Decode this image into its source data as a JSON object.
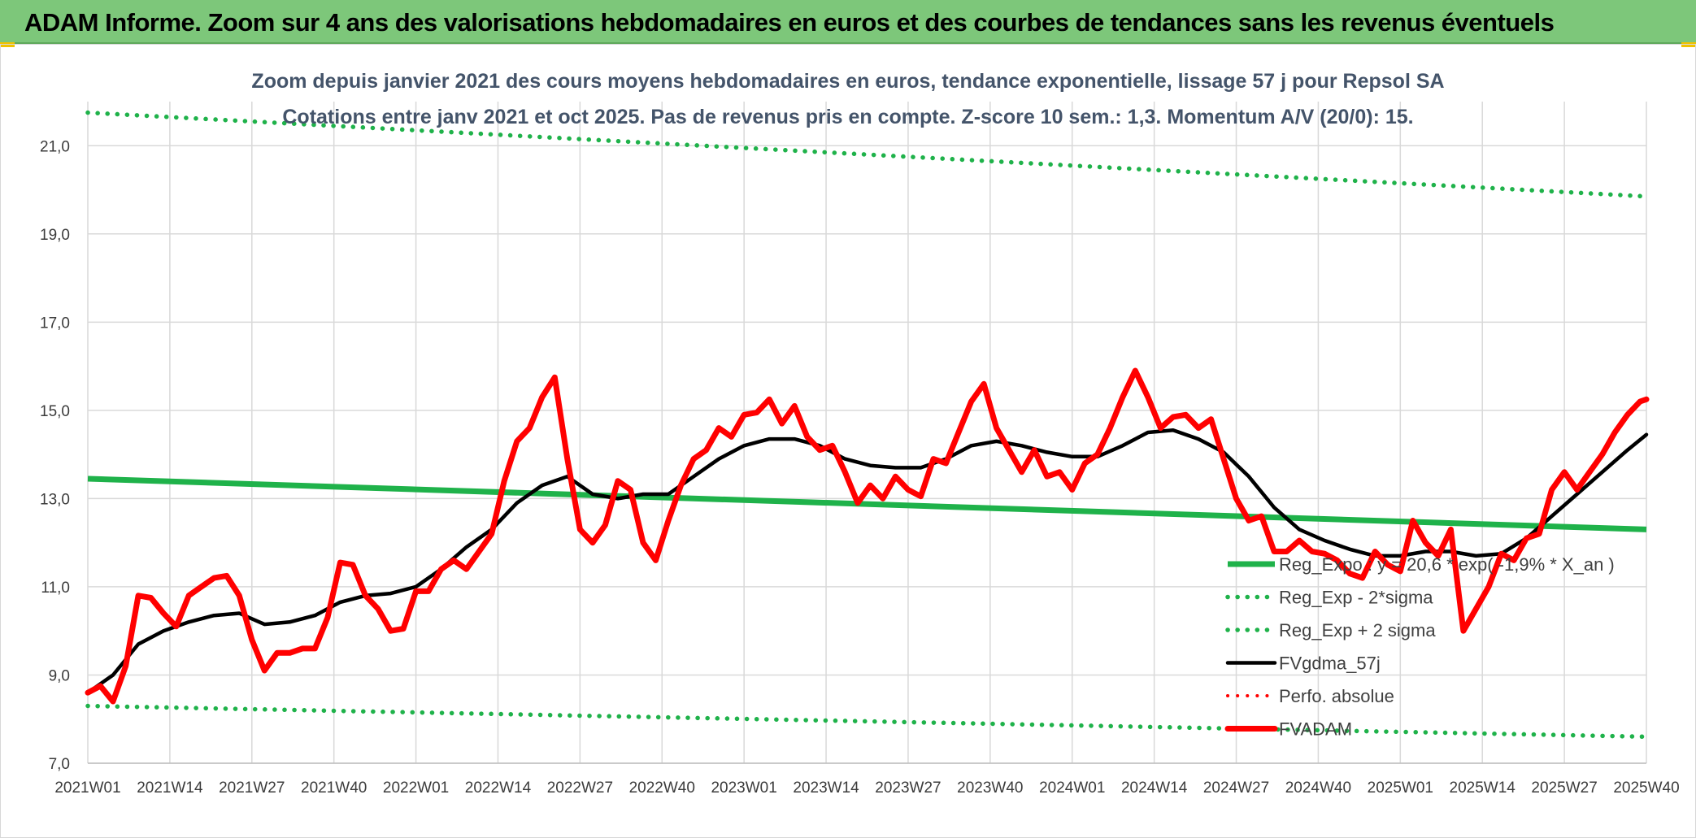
{
  "header": {
    "title": "ADAM Informe. Zoom sur 4 ans des valorisations hebdomadaires en euros et des courbes de tendances sans les revenus éventuels",
    "bar_color": "#7dc77a"
  },
  "chart_data": {
    "type": "line",
    "title_line1": "Zoom depuis janvier 2021 des cours moyens hebdomadaires en euros, tendance exponentielle, lissage 57 j pour Repsol SA",
    "title_line2": "Cotations entre janv 2021 et oct 2025. Pas de revenus pris en compte. Z-score 10 sem.: 1,3. Momentum A/V (20/0): 15.",
    "xlabel": "",
    "ylabel": "",
    "ylim": [
      7.0,
      22.0
    ],
    "y_ticks": [
      "7,0",
      "9,0",
      "11,0",
      "13,0",
      "15,0",
      "17,0",
      "19,0",
      "21,0"
    ],
    "y_tick_values": [
      7,
      9,
      11,
      13,
      15,
      17,
      19,
      21
    ],
    "x_range": [
      0,
      247
    ],
    "x_ticks": [
      "2021W01",
      "2021W14",
      "2021W27",
      "2021W40",
      "2022W01",
      "2022W14",
      "2022W27",
      "2022W40",
      "2023W01",
      "2023W14",
      "2023W27",
      "2023W40",
      "2024W01",
      "2024W14",
      "2024W27",
      "2024W40",
      "2025W01",
      "2025W14",
      "2025W27",
      "2025W40"
    ],
    "x_tick_positions": [
      0,
      13,
      26,
      39,
      52,
      65,
      78,
      91,
      104,
      117,
      130,
      143,
      156,
      169,
      182,
      195,
      208,
      221,
      234,
      247
    ],
    "legend_position": "right",
    "series": [
      {
        "name": "Reg_Expo : y = 20,6 * exp( -1,9% *  X_an )",
        "style": "solid",
        "color": "#1fb24a",
        "x": [
          0,
          247
        ],
        "values": [
          13.45,
          12.3
        ]
      },
      {
        "name": "Reg_Exp - 2*sigma",
        "style": "dotted",
        "color": "#1fb24a",
        "x": [
          0,
          247
        ],
        "values": [
          8.3,
          7.6
        ]
      },
      {
        "name": "Reg_Exp + 2 sigma",
        "style": "dotted",
        "color": "#1fb24a",
        "x": [
          0,
          247
        ],
        "values": [
          21.75,
          19.85
        ]
      },
      {
        "name": "FVgdma_57j",
        "style": "solid",
        "color": "#000000",
        "x": [
          0,
          4,
          8,
          12,
          16,
          20,
          24,
          28,
          32,
          36,
          40,
          44,
          48,
          52,
          56,
          60,
          64,
          68,
          72,
          76,
          80,
          84,
          88,
          92,
          96,
          100,
          104,
          108,
          112,
          116,
          120,
          124,
          128,
          132,
          136,
          140,
          144,
          148,
          152,
          156,
          160,
          164,
          168,
          172,
          176,
          180,
          184,
          188,
          192,
          196,
          200,
          204,
          208,
          212,
          216,
          220,
          224,
          228,
          232,
          236,
          240,
          244,
          247
        ],
        "values": [
          8.6,
          9.0,
          9.7,
          10.0,
          10.2,
          10.35,
          10.4,
          10.15,
          10.2,
          10.35,
          10.65,
          10.8,
          10.85,
          11.0,
          11.4,
          11.9,
          12.3,
          12.9,
          13.3,
          13.5,
          13.1,
          13.0,
          13.1,
          13.1,
          13.5,
          13.9,
          14.2,
          14.35,
          14.35,
          14.2,
          13.9,
          13.75,
          13.7,
          13.7,
          13.9,
          14.2,
          14.3,
          14.2,
          14.05,
          13.95,
          13.95,
          14.2,
          14.5,
          14.55,
          14.35,
          14.05,
          13.5,
          12.8,
          12.3,
          12.05,
          11.85,
          11.7,
          11.7,
          11.8,
          11.8,
          11.7,
          11.75,
          12.1,
          12.6,
          13.1,
          13.6,
          14.1,
          14.45
        ]
      },
      {
        "name": "Perfo. absolue",
        "style": "dotted",
        "color": "#ff0000",
        "x": [],
        "values": []
      },
      {
        "name": "FVADAM",
        "style": "solid",
        "color": "#ff0000",
        "x": [
          0,
          2,
          4,
          6,
          8,
          10,
          12,
          14,
          16,
          18,
          20,
          22,
          24,
          26,
          28,
          30,
          32,
          34,
          36,
          38,
          40,
          42,
          44,
          46,
          48,
          50,
          52,
          54,
          56,
          58,
          60,
          62,
          64,
          66,
          68,
          70,
          72,
          74,
          76,
          78,
          80,
          82,
          84,
          86,
          88,
          90,
          92,
          94,
          96,
          98,
          100,
          102,
          104,
          106,
          108,
          110,
          112,
          114,
          116,
          118,
          120,
          122,
          124,
          126,
          128,
          130,
          132,
          134,
          136,
          138,
          140,
          142,
          144,
          146,
          148,
          150,
          152,
          154,
          156,
          158,
          160,
          162,
          164,
          166,
          168,
          170,
          172,
          174,
          176,
          178,
          180,
          182,
          184,
          186,
          188,
          190,
          192,
          194,
          196,
          198,
          200,
          202,
          204,
          206,
          208,
          210,
          212,
          214,
          216,
          218,
          220,
          222,
          224,
          226,
          228,
          230,
          232,
          234,
          236,
          238,
          240,
          242,
          244,
          246,
          247
        ],
        "values": [
          8.6,
          8.75,
          8.4,
          9.2,
          10.8,
          10.75,
          10.4,
          10.1,
          10.8,
          11.0,
          11.2,
          11.25,
          10.8,
          9.8,
          9.1,
          9.5,
          9.5,
          9.6,
          9.6,
          10.3,
          11.55,
          11.5,
          10.8,
          10.5,
          10.0,
          10.05,
          10.9,
          10.9,
          11.4,
          11.6,
          11.4,
          11.8,
          12.2,
          13.4,
          14.3,
          14.6,
          15.3,
          15.75,
          13.9,
          12.3,
          12.0,
          12.4,
          13.4,
          13.2,
          12.0,
          11.6,
          12.5,
          13.3,
          13.9,
          14.1,
          14.6,
          14.4,
          14.9,
          14.95,
          15.25,
          14.7,
          15.1,
          14.4,
          14.1,
          14.2,
          13.6,
          12.9,
          13.3,
          13.0,
          13.5,
          13.2,
          13.05,
          13.9,
          13.8,
          14.5,
          15.2,
          15.6,
          14.6,
          14.1,
          13.6,
          14.1,
          13.5,
          13.6,
          13.2,
          13.8,
          14.0,
          14.6,
          15.3,
          15.9,
          15.3,
          14.6,
          14.85,
          14.9,
          14.6,
          14.8,
          13.9,
          13.0,
          12.5,
          12.6,
          11.8,
          11.8,
          12.05,
          11.8,
          11.75,
          11.6,
          11.3,
          11.2,
          11.8,
          11.5,
          11.35,
          12.5,
          12.0,
          11.7,
          12.3,
          10.0,
          10.5,
          11.0,
          11.75,
          11.6,
          12.1,
          12.2,
          13.2,
          13.6,
          13.2,
          13.6,
          14.0,
          14.5,
          14.9,
          15.2,
          15.25
        ]
      }
    ]
  }
}
